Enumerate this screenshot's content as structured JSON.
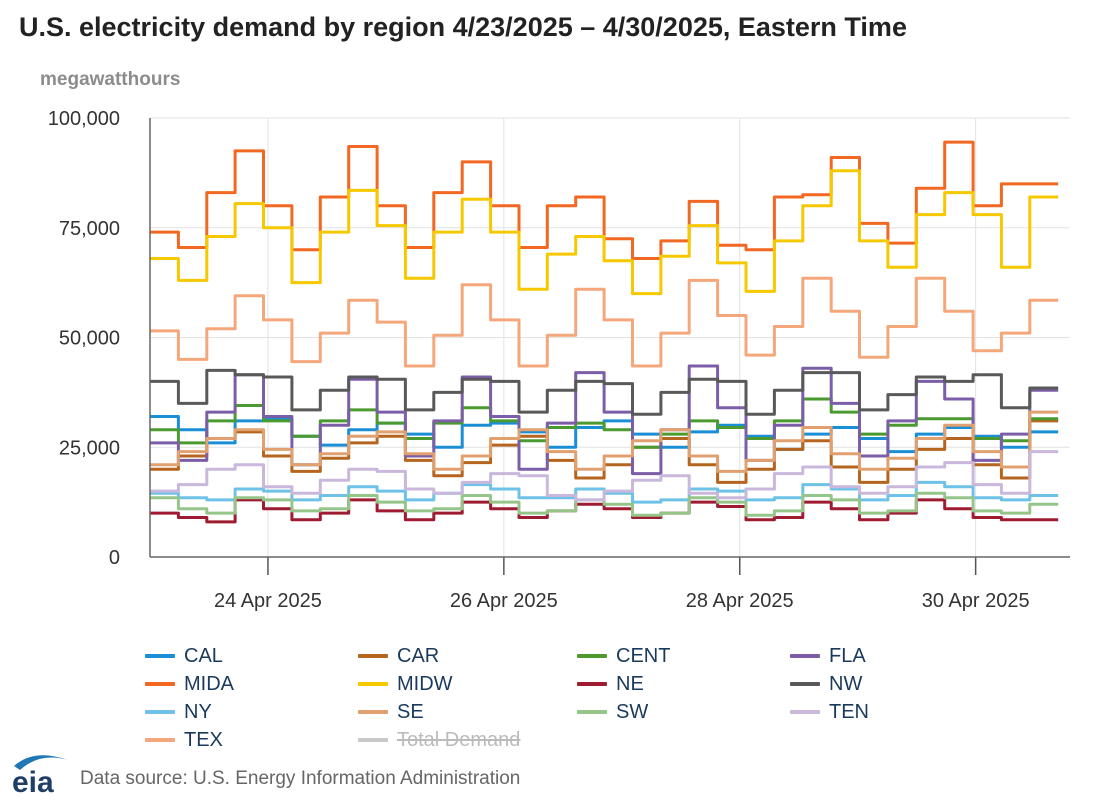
{
  "title": "U.S. electricity demand by region 4/23/2025 – 4/30/2025, Eastern Time",
  "unit_label": "megawatthours",
  "source": "Data source: U.S. Energy Information Administration",
  "logo_text": "eia",
  "chart_data": {
    "type": "line",
    "y_ticks": [
      "100,000",
      "75,000",
      "50,000",
      "25,000",
      "0"
    ],
    "y_tick_values": [
      100000,
      75000,
      50000,
      25000,
      0
    ],
    "x_ticks": [
      "24 Apr 2025",
      "26 Apr 2025",
      "28 Apr 2025",
      "30 Apr 2025"
    ],
    "x_range_days": [
      0,
      7.8
    ],
    "ylim": [
      0,
      100000
    ],
    "grid": true,
    "legend_position": "bottom",
    "series": [
      {
        "name": "CAL",
        "color": "#1a8fd6",
        "values": [
          32000,
          29000,
          26000,
          31000,
          31500,
          27500,
          25500,
          29000,
          30500,
          28000,
          25000,
          30000,
          30500,
          28500,
          25000,
          29500,
          31000,
          28000,
          25000,
          28500,
          30000,
          27500,
          24500,
          28000,
          29500,
          27000,
          24000,
          28000,
          29500,
          27500,
          25000,
          28500
        ]
      },
      {
        "name": "CAR",
        "color": "#b5651d",
        "values": [
          20000,
          23000,
          27000,
          28500,
          23000,
          19500,
          22500,
          26000,
          27500,
          22000,
          18500,
          21500,
          25500,
          27500,
          22000,
          18000,
          21000,
          25000,
          27000,
          21000,
          17000,
          20000,
          24500,
          26500,
          20500,
          17000,
          20000,
          24500,
          27000,
          21000,
          18000,
          31000
        ]
      },
      {
        "name": "CENT",
        "color": "#4a9a2f",
        "values": [
          29000,
          26000,
          31000,
          34500,
          31000,
          27500,
          31000,
          33500,
          30500,
          27000,
          30500,
          34000,
          31000,
          26500,
          29500,
          30500,
          29000,
          25000,
          28000,
          31000,
          29500,
          27000,
          31000,
          36000,
          33000,
          28000,
          30000,
          31500,
          31500,
          27000,
          26500,
          31500
        ]
      },
      {
        "name": "FLA",
        "color": "#7b5ea7",
        "values": [
          26000,
          22000,
          33000,
          41500,
          32000,
          21000,
          30000,
          40500,
          33000,
          23000,
          31000,
          41000,
          32000,
          20000,
          30500,
          42000,
          33000,
          19000,
          29000,
          43500,
          34000,
          22000,
          30000,
          43000,
          35000,
          23000,
          31000,
          40000,
          36000,
          22000,
          28000,
          38000
        ]
      },
      {
        "name": "MIDA",
        "color": "#f26722",
        "values": [
          74000,
          70500,
          83000,
          92500,
          80000,
          70000,
          82000,
          93500,
          80000,
          70500,
          83000,
          90000,
          80000,
          70500,
          80000,
          82000,
          72500,
          68000,
          72000,
          81000,
          71000,
          70000,
          82000,
          82500,
          91000,
          76000,
          71500,
          84000,
          94500,
          80000,
          85000,
          85000
        ]
      },
      {
        "name": "MIDW",
        "color": "#f5c800",
        "values": [
          68000,
          63000,
          73000,
          80500,
          75000,
          62500,
          74000,
          83500,
          75500,
          63500,
          74000,
          81500,
          74000,
          61000,
          69000,
          73000,
          67500,
          60000,
          68500,
          75500,
          67000,
          60500,
          72000,
          80000,
          88000,
          72000,
          66000,
          78000,
          83000,
          78000,
          66000,
          82000
        ]
      },
      {
        "name": "NE",
        "color": "#9e1b32",
        "values": [
          10000,
          9000,
          8000,
          13000,
          11000,
          8500,
          10000,
          13000,
          10500,
          8500,
          10000,
          12500,
          11000,
          9000,
          10500,
          12000,
          11000,
          9000,
          10000,
          12500,
          11500,
          8500,
          9000,
          12500,
          11000,
          8500,
          10000,
          13000,
          11000,
          9000,
          8500,
          8500
        ]
      },
      {
        "name": "NW",
        "color": "#595959",
        "values": [
          40000,
          35000,
          42500,
          41500,
          41000,
          33500,
          38000,
          41000,
          40500,
          33500,
          37500,
          40500,
          40000,
          33000,
          38000,
          40000,
          39500,
          32500,
          37500,
          40500,
          40000,
          32500,
          38000,
          42000,
          42000,
          33500,
          37000,
          41000,
          40000,
          41500,
          34000,
          38500
        ]
      },
      {
        "name": "NY",
        "color": "#6ec2e8",
        "values": [
          14500,
          13500,
          13000,
          15500,
          15000,
          13000,
          14000,
          16000,
          15000,
          13000,
          14500,
          16500,
          15500,
          13500,
          13500,
          15500,
          14500,
          12500,
          13000,
          15500,
          15000,
          13000,
          13500,
          16500,
          15500,
          13000,
          14000,
          17000,
          16000,
          13500,
          13000,
          14000
        ]
      },
      {
        "name": "SE",
        "color": "#e0a070",
        "values": [
          21000,
          24000,
          27000,
          29000,
          24500,
          21000,
          23500,
          27500,
          28500,
          23500,
          20000,
          23000,
          27000,
          29000,
          24000,
          20000,
          23000,
          26500,
          29000,
          23000,
          19500,
          22000,
          26500,
          29500,
          23500,
          20000,
          22500,
          27000,
          30000,
          24000,
          20500,
          33000
        ]
      },
      {
        "name": "SW",
        "color": "#96c58a",
        "values": [
          13500,
          11000,
          10000,
          13500,
          13000,
          10500,
          11000,
          14000,
          12500,
          10500,
          11000,
          14000,
          12500,
          10000,
          10500,
          13000,
          12000,
          9500,
          10000,
          13500,
          12500,
          9500,
          10500,
          14000,
          13000,
          10000,
          10500,
          14500,
          13500,
          10500,
          10000,
          12000
        ]
      },
      {
        "name": "TEN",
        "color": "#c9b8dc",
        "values": [
          15000,
          16500,
          20000,
          21000,
          16000,
          14500,
          17500,
          20000,
          19500,
          15500,
          14500,
          17000,
          19000,
          18500,
          14000,
          13000,
          15000,
          17500,
          18500,
          14500,
          13500,
          15500,
          19000,
          20500,
          16000,
          14500,
          16000,
          20500,
          21500,
          16500,
          14500,
          24000
        ]
      },
      {
        "name": "TEX",
        "color": "#f5a77c",
        "values": [
          51500,
          45000,
          52000,
          59500,
          54000,
          44500,
          51000,
          58500,
          53500,
          43500,
          50500,
          62000,
          54000,
          43500,
          50500,
          61000,
          54000,
          43500,
          51000,
          63000,
          55000,
          46000,
          52500,
          63500,
          56000,
          45500,
          52500,
          63500,
          56000,
          47000,
          51000,
          58500
        ]
      },
      {
        "name": "Total Demand",
        "color": "#c8c8c8",
        "hidden": true,
        "values": []
      }
    ]
  }
}
